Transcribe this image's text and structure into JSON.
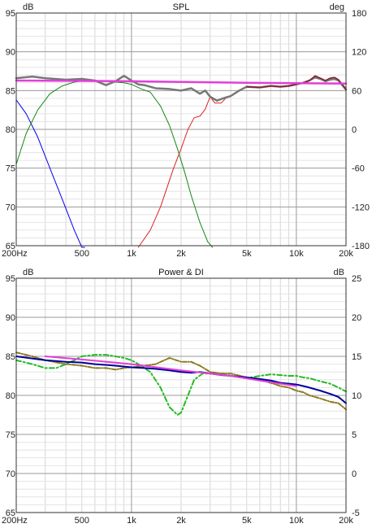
{
  "chart_data": [
    {
      "type": "line",
      "title": "SPL",
      "ylabel_left": "dB",
      "ylabel_right": "deg",
      "x_scale": "log",
      "xlim": [
        200,
        20000
      ],
      "ylim": [
        65,
        95
      ],
      "ylim_right": [
        -180,
        180
      ],
      "grid": true,
      "x_ticks": [
        {
          "v": 200,
          "label": "200Hz"
        },
        {
          "v": 500,
          "label": "500"
        },
        {
          "v": 1000,
          "label": "1k"
        },
        {
          "v": 2000,
          "label": "2k"
        },
        {
          "v": 5000,
          "label": "5k"
        },
        {
          "v": 10000,
          "label": "10k"
        },
        {
          "v": 20000,
          "label": "20k"
        }
      ],
      "y_ticks": [
        "65",
        "70",
        "75",
        "80",
        "85",
        "90",
        "95"
      ],
      "y_ticks_right": [
        "-180",
        "-120",
        "-60",
        "0",
        "60",
        "120",
        "180"
      ],
      "series": [
        {
          "color": "#0000ee",
          "width": 1,
          "dash": "",
          "x": [
            200,
            230,
            270,
            320,
            380,
            450,
            500,
            520
          ],
          "y": [
            83.8,
            82,
            79,
            75,
            71,
            67,
            64.5,
            63
          ]
        },
        {
          "color": "#118811",
          "width": 1,
          "dash": "",
          "x": [
            200,
            230,
            270,
            320,
            380,
            450,
            520,
            600,
            700,
            800,
            900,
            1000,
            1150,
            1300,
            1500,
            1700,
            1900,
            2100,
            2300,
            2600,
            2900,
            3100
          ],
          "y": [
            75.5,
            79.5,
            82.5,
            84.6,
            85.6,
            86.1,
            86.3,
            86.2,
            86.2,
            86.1,
            86.0,
            85.8,
            85.2,
            84.8,
            83.0,
            80.5,
            77.5,
            74.5,
            71.5,
            68.0,
            65.5,
            63.5
          ]
        },
        {
          "color": "#dd2222",
          "width": 1,
          "dash": "",
          "x": [
            1100,
            1300,
            1500,
            1800,
            2000,
            2200,
            2400,
            2600,
            2800,
            3000,
            3200,
            3500,
            3800
          ],
          "y": [
            63.5,
            67.0,
            70.0,
            75.0,
            77.5,
            80.0,
            81.5,
            81.7,
            82.6,
            84.2,
            83.4,
            83.4,
            84.2
          ]
        },
        {
          "color": "#777777",
          "width": 2.5,
          "dash": "",
          "x": [
            200,
            250,
            300,
            400,
            500,
            600,
            700,
            800,
            900,
            1000,
            1100,
            1200,
            1400,
            1700,
            2000,
            2300,
            2600,
            2800,
            3000,
            3300,
            3600,
            4000,
            4500,
            5000,
            6000,
            7000,
            8000,
            9000,
            10000,
            11000,
            12000,
            13000,
            14000,
            15000,
            16000,
            17000,
            18000,
            20000
          ],
          "y": [
            86.6,
            86.8,
            86.6,
            86.4,
            86.5,
            86.3,
            85.7,
            86.2,
            86.9,
            86.3,
            85.8,
            85.7,
            85.3,
            85.2,
            85.0,
            85.3,
            84.6,
            85.0,
            84.2,
            83.7,
            84.0,
            84.3,
            85.0,
            85.5,
            85.4,
            85.6,
            85.5,
            85.6,
            85.8,
            86.0,
            86.3,
            86.7,
            86.5,
            86.2,
            86.4,
            86.5,
            86.3,
            85.1
          ]
        },
        {
          "color": "#8b2030",
          "width": 1.6,
          "dash": "",
          "x": [
            5000,
            6000,
            7000,
            8000,
            9000,
            10000,
            11000,
            12000,
            13000,
            14000,
            15000,
            16000,
            17000,
            18000,
            20000
          ],
          "y": [
            85.5,
            85.4,
            85.6,
            85.5,
            85.6,
            85.8,
            86.0,
            86.3,
            86.9,
            86.6,
            86.3,
            86.6,
            86.7,
            86.4,
            85.2
          ]
        },
        {
          "color": "#e040d8",
          "width": 2.5,
          "dash": "",
          "x": [
            200,
            1000,
            5000,
            20000
          ],
          "y": [
            86.3,
            86.2,
            86.0,
            85.9
          ]
        }
      ]
    },
    {
      "type": "line",
      "title": "Power & DI",
      "ylabel_left": "dB",
      "ylabel_right": "dB",
      "x_scale": "log",
      "xlim": [
        200,
        20000
      ],
      "ylim": [
        65,
        95
      ],
      "ylim_right": [
        -5,
        25
      ],
      "grid": true,
      "x_ticks": [
        {
          "v": 200,
          "label": "200Hz"
        },
        {
          "v": 500,
          "label": "500"
        },
        {
          "v": 1000,
          "label": "1k"
        },
        {
          "v": 2000,
          "label": "2k"
        },
        {
          "v": 5000,
          "label": "5k"
        },
        {
          "v": 10000,
          "label": "10k"
        },
        {
          "v": 20000,
          "label": "20k"
        }
      ],
      "y_ticks": [
        "65",
        "70",
        "75",
        "80",
        "85",
        "90",
        "95"
      ],
      "y_ticks_right": [
        "-5",
        "0",
        "5",
        "10",
        "15",
        "20",
        "25"
      ],
      "series": [
        {
          "color": "#22bb22",
          "width": 2,
          "dash": "6,3,2,3",
          "x": [
            200,
            250,
            300,
            350,
            400,
            450,
            500,
            600,
            700,
            800,
            900,
            1000,
            1100,
            1300,
            1500,
            1700,
            1900,
            2000,
            2200,
            2400,
            2700,
            3000,
            3500,
            4000,
            4500,
            5000,
            6000,
            7000,
            8000,
            9000,
            10000,
            11000,
            12000,
            14000,
            16000,
            18000,
            20000
          ],
          "y": [
            84.5,
            84.0,
            83.5,
            83.5,
            84.0,
            84.5,
            85.0,
            85.2,
            85.2,
            85.0,
            84.8,
            84.5,
            84.0,
            83.0,
            81.0,
            78.5,
            77.5,
            77.8,
            80.0,
            82.0,
            82.8,
            82.8,
            82.8,
            82.5,
            82.3,
            82.2,
            82.5,
            82.7,
            82.6,
            82.5,
            82.5,
            82.3,
            82.2,
            81.8,
            81.5,
            81.0,
            80.5
          ]
        },
        {
          "color": "#8b7a20",
          "width": 2,
          "dash": "5,2,1,2",
          "x": [
            200,
            250,
            300,
            400,
            500,
            600,
            700,
            800,
            900,
            1000,
            1200,
            1400,
            1700,
            2000,
            2300,
            2600,
            3000,
            3500,
            4000,
            5000,
            6000,
            7000,
            8000,
            9000,
            10000,
            11000,
            12000,
            14000,
            16000,
            18000,
            20000
          ],
          "y": [
            85.5,
            85.0,
            84.5,
            84.0,
            83.8,
            83.5,
            83.5,
            83.3,
            83.5,
            83.6,
            83.8,
            84.0,
            84.8,
            84.3,
            84.3,
            83.8,
            83.0,
            82.8,
            82.8,
            82.3,
            82.0,
            81.6,
            81.2,
            81.0,
            80.6,
            80.4,
            80.0,
            79.6,
            79.2,
            79.0,
            78.2
          ]
        },
        {
          "color": "#000099",
          "width": 2,
          "dash": "",
          "x": [
            200,
            300,
            400,
            500,
            600,
            700,
            800,
            900,
            1000,
            1200,
            1400,
            1700,
            2000,
            2300,
            2600,
            3000,
            3500,
            4000,
            5000,
            6000,
            7000,
            8000,
            9000,
            10000,
            11000,
            12000,
            14000,
            16000,
            18000,
            20000
          ],
          "y": [
            85.0,
            84.5,
            84.3,
            84.2,
            84.0,
            83.9,
            83.8,
            83.7,
            83.6,
            83.5,
            83.4,
            83.2,
            83.0,
            82.9,
            83.0,
            82.8,
            82.6,
            82.5,
            82.3,
            82.1,
            81.9,
            81.6,
            81.5,
            81.4,
            81.2,
            81.0,
            80.6,
            80.2,
            79.8,
            79.0
          ]
        },
        {
          "color": "#e040d8",
          "width": 2,
          "dash": "",
          "x": [
            300,
            500,
            1000,
            2000,
            4000,
            6000,
            8000,
            10000
          ],
          "y": [
            85.0,
            84.6,
            84.0,
            83.2,
            82.5,
            81.9,
            81.5,
            81.2
          ]
        }
      ]
    }
  ]
}
